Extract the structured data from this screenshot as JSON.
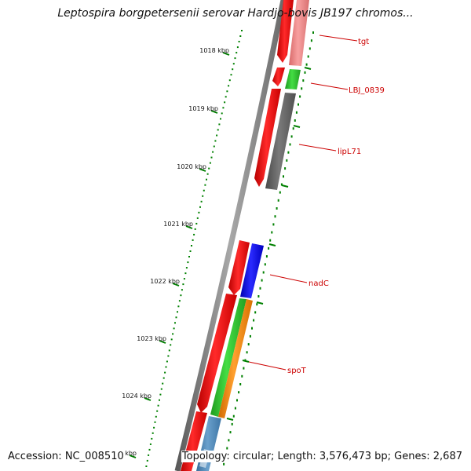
{
  "header": {
    "title": "Leptospira borgpetersenii serovar Hardjo-bovis JB197 chromos..."
  },
  "footer": {
    "accession": "Accession: NC_008510",
    "topology": "Topology: circular; Length: 3,576,473 bp; Genes: 2,687"
  },
  "colors": {
    "forward_cds": "#ff0000",
    "backbone": "#808080",
    "ticks": "#008000",
    "label": "#cc0000",
    "gene_tgt": "#f08080",
    "gene_LBJ_0839": "#33cc33",
    "gene_lipL71": "#666666",
    "gene_nadC": "#0000ff",
    "gene_spoT_green": "#33cc33",
    "gene_spoT_orange": "#ff8c00",
    "gene_blue": "#4682b4"
  },
  "scale_labels": [
    "1018 kbp",
    "1019 kbp",
    "1020 kbp",
    "1021 kbp",
    "1022 kbp",
    "1023 kbp",
    "1024 kbp",
    "1025 kbp"
  ],
  "gene_labels": [
    "tgt",
    "LBJ_0839",
    "lipL71",
    "nadC",
    "spoT"
  ]
}
